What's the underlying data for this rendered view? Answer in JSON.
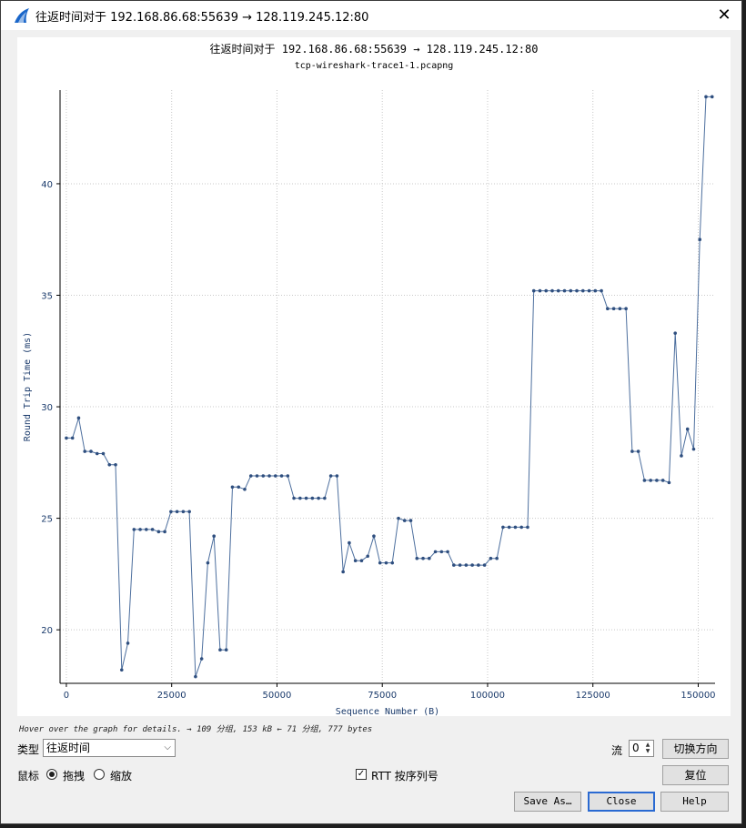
{
  "window": {
    "title": "往返时间对于 192.168.86.68:55639 → 128.119.245.12:80",
    "close_icon": "close-icon"
  },
  "plot": {
    "title": "往返时间对于 192.168.86.68:55639 → 128.119.245.12:80",
    "subtitle": "tcp-wireshark-trace1-1.pcapng"
  },
  "chart_data": {
    "type": "line",
    "title": "往返时间对于 192.168.86.68:55639 → 128.119.245.12:80",
    "subtitle": "tcp-wireshark-trace1-1.pcapng",
    "xlabel": "Sequence Number (B)",
    "ylabel": "Round Trip Time (ms)",
    "xlim": [
      -1500,
      154000
    ],
    "ylim": [
      17.6,
      44.2
    ],
    "xticks": [
      0,
      25000,
      50000,
      75000,
      100000,
      125000,
      150000
    ],
    "yticks": [
      20,
      25,
      30,
      35,
      40
    ],
    "grid": true,
    "color": "#4d6f9e",
    "points": [
      [
        0,
        28.6
      ],
      [
        1460,
        28.6
      ],
      [
        2920,
        29.5
      ],
      [
        4380,
        28.0
      ],
      [
        5840,
        28.0
      ],
      [
        7300,
        27.9
      ],
      [
        8760,
        27.9
      ],
      [
        10220,
        27.4
      ],
      [
        11680,
        27.4
      ],
      [
        13140,
        18.2
      ],
      [
        14600,
        19.4
      ],
      [
        16060,
        24.5
      ],
      [
        17520,
        24.5
      ],
      [
        18980,
        24.5
      ],
      [
        20440,
        24.5
      ],
      [
        21900,
        24.4
      ],
      [
        23360,
        24.4
      ],
      [
        24820,
        25.3
      ],
      [
        26280,
        25.3
      ],
      [
        27740,
        25.3
      ],
      [
        29200,
        25.3
      ],
      [
        30660,
        17.9
      ],
      [
        32120,
        18.7
      ],
      [
        33580,
        23.0
      ],
      [
        35040,
        24.2
      ],
      [
        36500,
        19.1
      ],
      [
        37960,
        19.1
      ],
      [
        39420,
        26.4
      ],
      [
        40880,
        26.4
      ],
      [
        42340,
        26.3
      ],
      [
        43800,
        26.9
      ],
      [
        45260,
        26.9
      ],
      [
        46720,
        26.9
      ],
      [
        48180,
        26.9
      ],
      [
        49640,
        26.9
      ],
      [
        51100,
        26.9
      ],
      [
        52560,
        26.9
      ],
      [
        54020,
        25.9
      ],
      [
        55480,
        25.9
      ],
      [
        56940,
        25.9
      ],
      [
        58400,
        25.9
      ],
      [
        59860,
        25.9
      ],
      [
        61320,
        25.9
      ],
      [
        62780,
        26.9
      ],
      [
        64240,
        26.9
      ],
      [
        65700,
        22.6
      ],
      [
        67160,
        23.9
      ],
      [
        68620,
        23.1
      ],
      [
        70080,
        23.1
      ],
      [
        71540,
        23.3
      ],
      [
        73000,
        24.2
      ],
      [
        74460,
        23.0
      ],
      [
        75920,
        23.0
      ],
      [
        77380,
        23.0
      ],
      [
        78840,
        25.0
      ],
      [
        80300,
        24.9
      ],
      [
        81760,
        24.9
      ],
      [
        83220,
        23.2
      ],
      [
        84680,
        23.2
      ],
      [
        86140,
        23.2
      ],
      [
        87600,
        23.5
      ],
      [
        89060,
        23.5
      ],
      [
        90520,
        23.5
      ],
      [
        91980,
        22.9
      ],
      [
        93440,
        22.9
      ],
      [
        94900,
        22.9
      ],
      [
        96360,
        22.9
      ],
      [
        97820,
        22.9
      ],
      [
        99280,
        22.9
      ],
      [
        100740,
        23.2
      ],
      [
        102200,
        23.2
      ],
      [
        103660,
        24.6
      ],
      [
        105120,
        24.6
      ],
      [
        106580,
        24.6
      ],
      [
        108040,
        24.6
      ],
      [
        109500,
        24.6
      ],
      [
        110960,
        35.2
      ],
      [
        112420,
        35.2
      ],
      [
        113880,
        35.2
      ],
      [
        115340,
        35.2
      ],
      [
        116800,
        35.2
      ],
      [
        118260,
        35.2
      ],
      [
        119720,
        35.2
      ],
      [
        121180,
        35.2
      ],
      [
        122640,
        35.2
      ],
      [
        124100,
        35.2
      ],
      [
        125560,
        35.2
      ],
      [
        127020,
        35.2
      ],
      [
        128480,
        34.4
      ],
      [
        129940,
        34.4
      ],
      [
        131400,
        34.4
      ],
      [
        132860,
        34.4
      ],
      [
        134320,
        28.0
      ],
      [
        135780,
        28.0
      ],
      [
        137240,
        26.7
      ],
      [
        138700,
        26.7
      ],
      [
        140160,
        26.7
      ],
      [
        141620,
        26.7
      ],
      [
        143080,
        26.6
      ],
      [
        144540,
        33.3
      ],
      [
        146000,
        27.8
      ],
      [
        147460,
        29.0
      ],
      [
        148920,
        28.1
      ],
      [
        150380,
        37.5
      ],
      [
        151840,
        43.9
      ],
      [
        153300,
        43.9
      ]
    ]
  },
  "hint": "Hover over the graph for details. → 109 分组, 153 kB ← 71 分组, 777 bytes",
  "controls": {
    "type_label": "类型",
    "type_value": "往返时间",
    "stream_label": "流",
    "stream_value": "0",
    "switch_direction": "切换方向",
    "mouse_label": "鼠标",
    "drag_label": "拖拽",
    "zoom_label": "缩放",
    "rtt_label": "RTT 按序列号",
    "reset": "复位",
    "save_as": "Save As…",
    "close": "Close",
    "help": "Help"
  }
}
